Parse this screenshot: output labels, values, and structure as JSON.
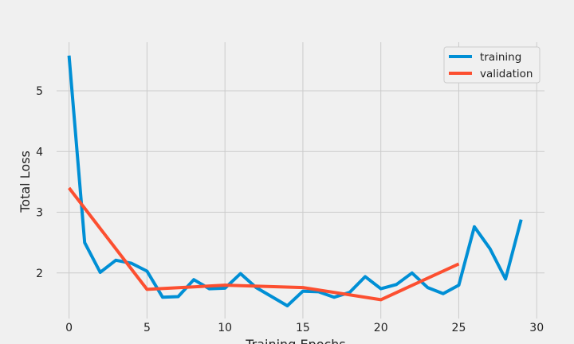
{
  "chart_data": {
    "type": "line",
    "title": "",
    "xlabel": "Training Epochs",
    "ylabel": "Total Loss",
    "xlim": [
      -0.8,
      30.5
    ],
    "ylim": [
      1.25,
      5.8
    ],
    "xticks": [
      0,
      5,
      10,
      15,
      20,
      25,
      30
    ],
    "yticks": [
      2,
      3,
      4,
      5
    ],
    "grid": true,
    "legend_position": "top-right",
    "series": [
      {
        "name": "training",
        "color": "#008fd5",
        "x": [
          0,
          1,
          2,
          3,
          4,
          5,
          6,
          7,
          8,
          9,
          10,
          11,
          12,
          13,
          14,
          15,
          16,
          17,
          18,
          19,
          20,
          21,
          22,
          23,
          24,
          25,
          26,
          27,
          28,
          29
        ],
        "y": [
          5.58,
          2.5,
          2.01,
          2.21,
          2.16,
          2.03,
          1.6,
          1.61,
          1.89,
          1.74,
          1.75,
          1.99,
          1.76,
          1.61,
          1.46,
          1.7,
          1.69,
          1.6,
          1.68,
          1.94,
          1.74,
          1.81,
          2.0,
          1.76,
          1.66,
          1.8,
          2.76,
          2.4,
          1.9,
          2.88
        ]
      },
      {
        "name": "validation",
        "color": "#fc4f30",
        "x": [
          0,
          5,
          10,
          15,
          20,
          25
        ],
        "y": [
          3.4,
          1.73,
          1.8,
          1.76,
          1.56,
          2.15
        ]
      }
    ]
  }
}
